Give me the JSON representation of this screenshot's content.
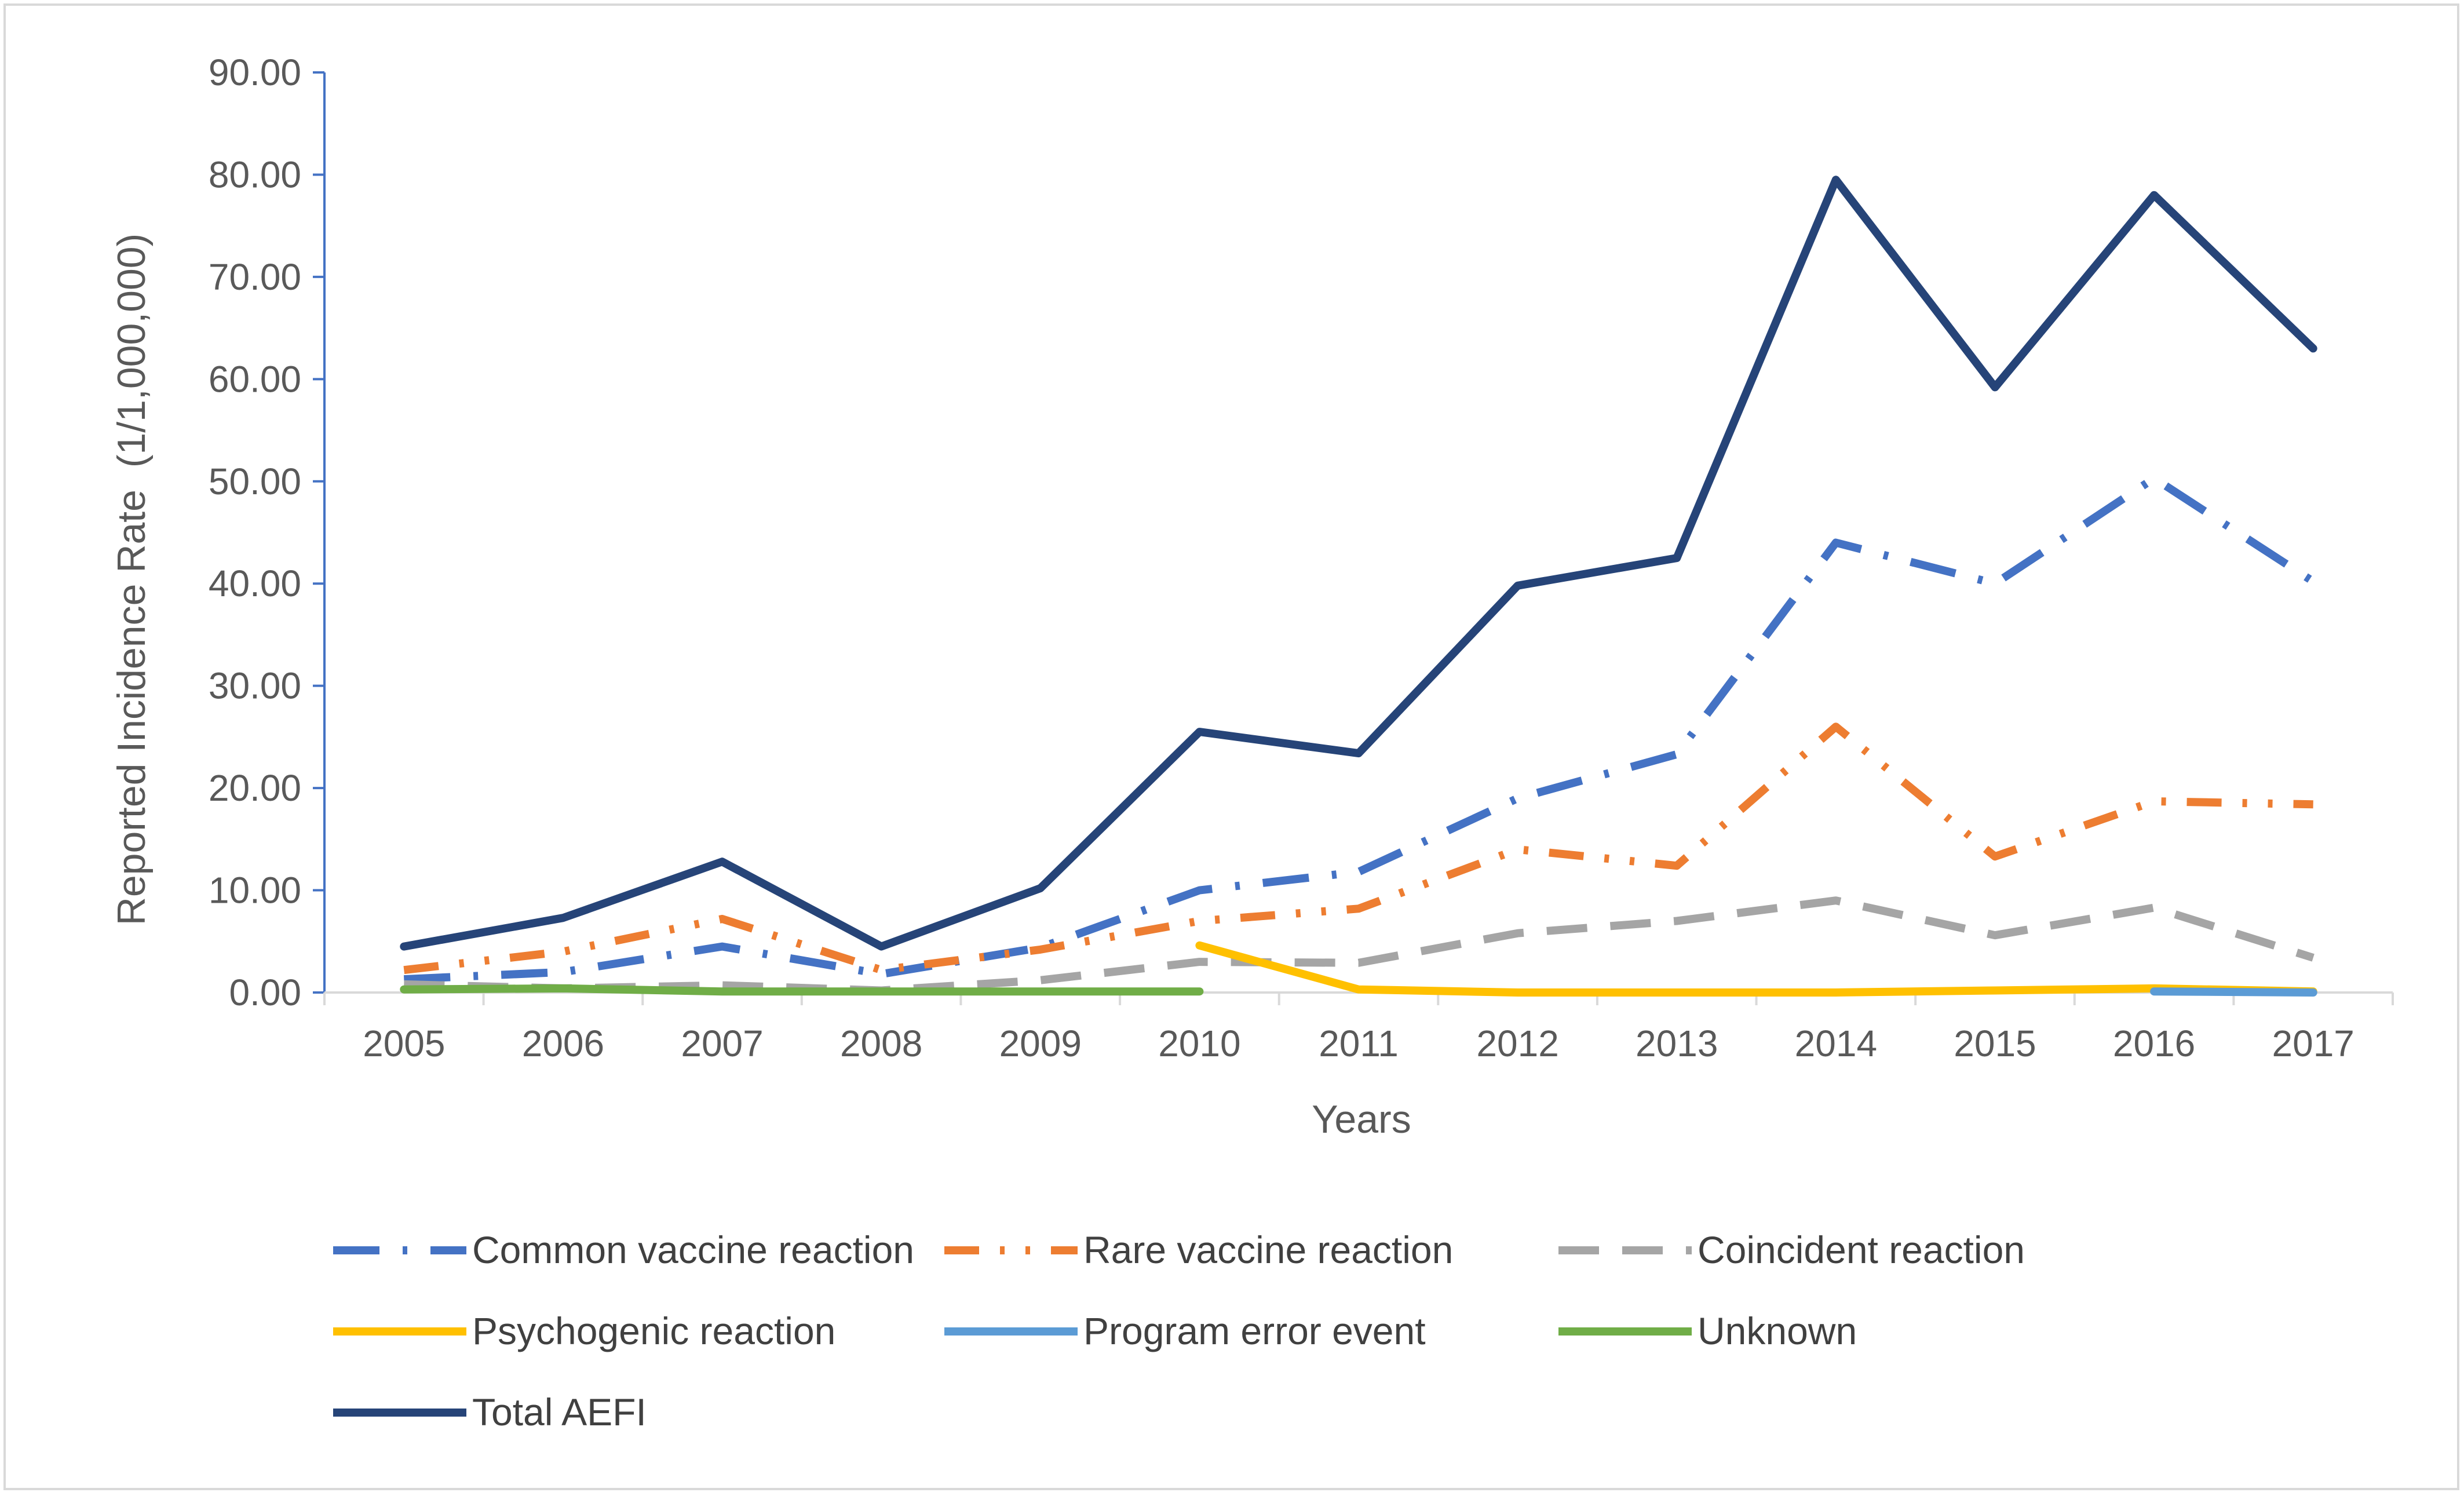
{
  "chart_data": {
    "type": "line",
    "title": "",
    "xlabel": "Years",
    "ylabel": "Reported Incidence Rate  (1/1,000,000)",
    "ylim": [
      0,
      90
    ],
    "yticks": [
      "0.00",
      "10.00",
      "20.00",
      "30.00",
      "40.00",
      "50.00",
      "60.00",
      "70.00",
      "80.00",
      "90.00"
    ],
    "categories": [
      "2005",
      "2006",
      "2007",
      "2008",
      "2009",
      "2010",
      "2011",
      "2012",
      "2013",
      "2014",
      "2015",
      "2016",
      "2017"
    ],
    "legend_position": "bottom",
    "series": [
      {
        "name": "Common vaccine reaction",
        "color": "#4472C4",
        "dash": "long-dash-dot",
        "values": [
          1.3,
          2.0,
          4.5,
          1.8,
          4.4,
          10.0,
          11.8,
          19.0,
          23.3,
          44.0,
          40.0,
          50.3,
          40.2
        ]
      },
      {
        "name": "Rare vaccine reaction",
        "color": "#ED7D31",
        "dash": "dash-dot-dot",
        "values": [
          2.2,
          4.0,
          7.2,
          2.2,
          4.2,
          7.0,
          8.2,
          14.0,
          12.4,
          26.0,
          13.3,
          18.7,
          18.4
        ]
      },
      {
        "name": "Coincident reaction",
        "color": "#A5A5A5",
        "dash": "long-dash",
        "values": [
          0.8,
          0.4,
          0.7,
          0.2,
          1.2,
          3.0,
          2.9,
          5.8,
          7.0,
          9.0,
          5.6,
          8.3,
          3.4
        ]
      },
      {
        "name": "Psychogenic reaction",
        "color": "#FFC000",
        "dash": "solid",
        "values": [
          null,
          null,
          null,
          null,
          null,
          4.6,
          0.3,
          0.0,
          0.0,
          0.0,
          0.2,
          0.4,
          0.1
        ]
      },
      {
        "name": "Program error event",
        "color": "#5B9BD5",
        "dash": "solid",
        "values": [
          null,
          null,
          null,
          null,
          null,
          null,
          null,
          null,
          null,
          null,
          null,
          0.1,
          0.0
        ]
      },
      {
        "name": "Unknown",
        "color": "#70AD47",
        "dash": "solid",
        "values": [
          0.3,
          0.4,
          0.1,
          0.1,
          0.1,
          0.1,
          null,
          null,
          null,
          null,
          null,
          null,
          null
        ]
      },
      {
        "name": "Total AEFI",
        "color": "#264478",
        "dash": "solid",
        "values": [
          4.5,
          7.3,
          12.8,
          4.5,
          10.2,
          25.5,
          23.4,
          39.8,
          42.5,
          79.5,
          59.2,
          78.0,
          63.0
        ]
      }
    ]
  }
}
